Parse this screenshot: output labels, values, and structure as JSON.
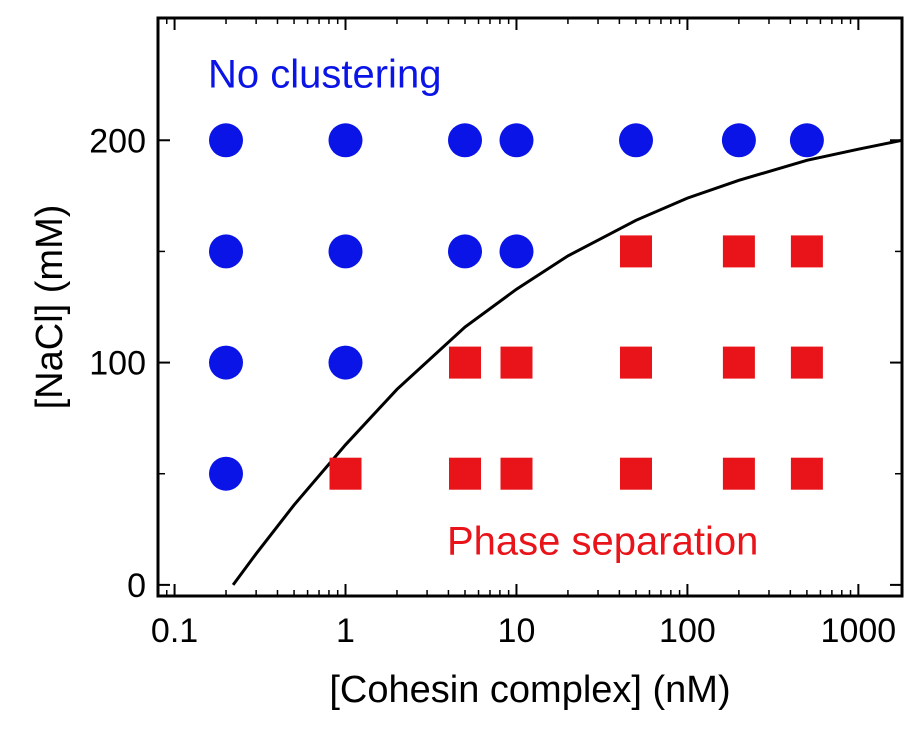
{
  "chart_data": {
    "type": "scatter",
    "title": "",
    "xlabel": "[Cohesin complex] (nM)",
    "ylabel": "[NaCl] (mM)",
    "x_scale": "log",
    "xlim": [
      0.08,
      1800
    ],
    "ylim": [
      -5,
      255
    ],
    "x_ticks": [
      0.1,
      1,
      10,
      100,
      1000
    ],
    "x_tick_labels": [
      "0.1",
      "1",
      "10",
      "100",
      "1000"
    ],
    "y_ticks": [
      0,
      100,
      200
    ],
    "y_tick_labels": [
      "0",
      "100",
      "200"
    ],
    "y_minor_ticks": [
      50,
      150
    ],
    "grid": false,
    "series": [
      {
        "marker": "circle",
        "color": "#0a14e6",
        "points": [
          {
            "x": 0.2,
            "y": 200
          },
          {
            "x": 1,
            "y": 200
          },
          {
            "x": 5,
            "y": 200
          },
          {
            "x": 10,
            "y": 200
          },
          {
            "x": 50,
            "y": 200
          },
          {
            "x": 200,
            "y": 200
          },
          {
            "x": 500,
            "y": 200
          },
          {
            "x": 0.2,
            "y": 150
          },
          {
            "x": 1,
            "y": 150
          },
          {
            "x": 5,
            "y": 150
          },
          {
            "x": 10,
            "y": 150
          },
          {
            "x": 0.2,
            "y": 100
          },
          {
            "x": 1,
            "y": 100
          },
          {
            "x": 0.2,
            "y": 50
          }
        ]
      },
      {
        "marker": "square",
        "color": "#e8141a",
        "points": [
          {
            "x": 50,
            "y": 150
          },
          {
            "x": 200,
            "y": 150
          },
          {
            "x": 500,
            "y": 150
          },
          {
            "x": 5,
            "y": 100
          },
          {
            "x": 10,
            "y": 100
          },
          {
            "x": 50,
            "y": 100
          },
          {
            "x": 200,
            "y": 100
          },
          {
            "x": 500,
            "y": 100
          },
          {
            "x": 1,
            "y": 50
          },
          {
            "x": 5,
            "y": 50
          },
          {
            "x": 10,
            "y": 50
          },
          {
            "x": 50,
            "y": 50
          },
          {
            "x": 200,
            "y": 50
          },
          {
            "x": 500,
            "y": 50
          }
        ]
      }
    ],
    "boundary_curve": {
      "color": "#000000",
      "points": [
        [
          0.22,
          0
        ],
        [
          0.3,
          14
        ],
        [
          0.5,
          36
        ],
        [
          1,
          63
        ],
        [
          2,
          88
        ],
        [
          5,
          116
        ],
        [
          10,
          133
        ],
        [
          20,
          148
        ],
        [
          50,
          164
        ],
        [
          100,
          174
        ],
        [
          200,
          182
        ],
        [
          500,
          191
        ],
        [
          1000,
          196
        ],
        [
          1800,
          200
        ]
      ]
    },
    "annotations": [
      {
        "text": "No clustering",
        "color": "#0a14e6",
        "x": 0.2,
        "y": 230
      },
      {
        "text": "Phase separation",
        "color": "#e8141a",
        "x": 5,
        "y": 20
      }
    ]
  }
}
